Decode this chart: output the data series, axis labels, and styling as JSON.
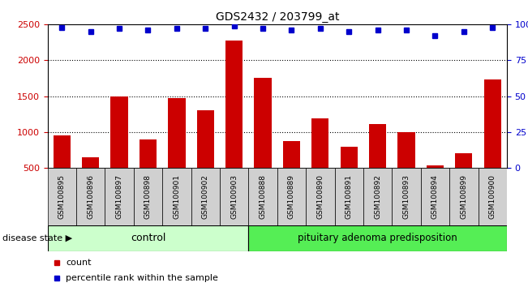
{
  "title": "GDS2432 / 203799_at",
  "samples": [
    "GSM100895",
    "GSM100896",
    "GSM100897",
    "GSM100898",
    "GSM100901",
    "GSM100902",
    "GSM100903",
    "GSM100888",
    "GSM100889",
    "GSM100890",
    "GSM100891",
    "GSM100892",
    "GSM100893",
    "GSM100894",
    "GSM100899",
    "GSM100900"
  ],
  "counts": [
    950,
    650,
    1500,
    900,
    1470,
    1300,
    2270,
    1760,
    870,
    1190,
    800,
    1110,
    1000,
    530,
    700,
    1730
  ],
  "percentiles": [
    98,
    95,
    97,
    96,
    97,
    97,
    99,
    97,
    96,
    97,
    95,
    96,
    96,
    92,
    95,
    98
  ],
  "n_control": 7,
  "n_disease": 9,
  "bar_color": "#cc0000",
  "dot_color": "#0000cc",
  "control_bg": "#ccffcc",
  "disease_bg": "#55ee55",
  "label_box_bg": "#d0d0d0",
  "ylim_left": [
    500,
    2500
  ],
  "ylim_right": [
    0,
    100
  ],
  "y_ticks_left": [
    500,
    1000,
    1500,
    2000,
    2500
  ],
  "y_ticks_right": [
    0,
    25,
    50,
    75,
    100
  ],
  "left_tick_color": "#cc0000",
  "right_tick_color": "#0000cc",
  "disease_state_label": "disease state",
  "control_label": "control",
  "disease_label": "pituitary adenoma predisposition",
  "legend_count": "count",
  "legend_percentile": "percentile rank within the sample"
}
